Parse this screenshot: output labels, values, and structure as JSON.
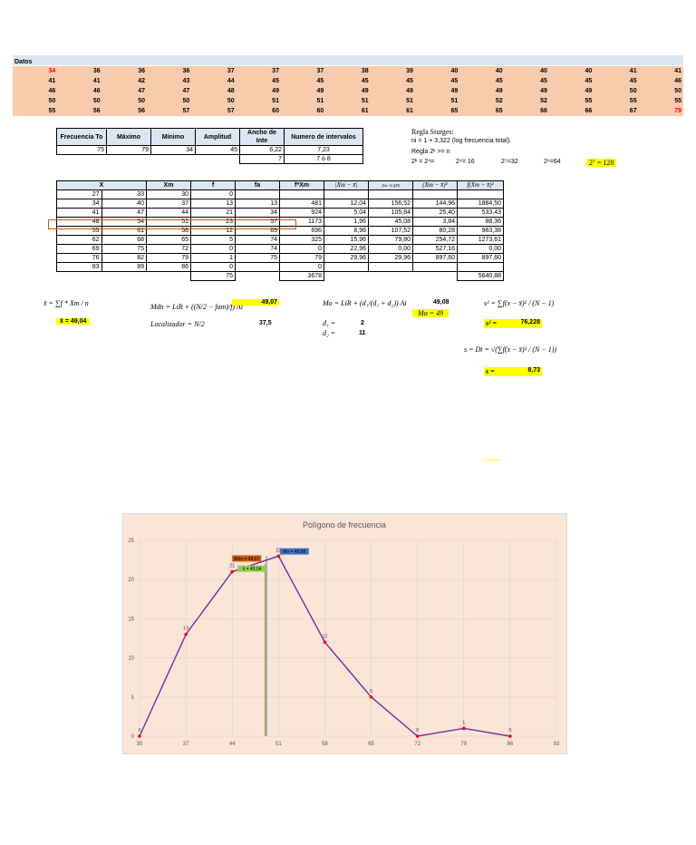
{
  "datos": {
    "label": "Datos",
    "rows": [
      [
        "34",
        "36",
        "36",
        "36",
        "37",
        "37",
        "37",
        "38",
        "39",
        "40",
        "40",
        "40",
        "40",
        "41",
        "41"
      ],
      [
        "41",
        "41",
        "42",
        "43",
        "44",
        "45",
        "45",
        "45",
        "45",
        "45",
        "45",
        "45",
        "45",
        "45",
        "46"
      ],
      [
        "46",
        "46",
        "47",
        "47",
        "48",
        "49",
        "49",
        "49",
        "49",
        "49",
        "49",
        "49",
        "49",
        "50",
        "50"
      ],
      [
        "50",
        "50",
        "50",
        "50",
        "50",
        "51",
        "51",
        "51",
        "51",
        "51",
        "52",
        "52",
        "55",
        "55",
        "55"
      ],
      [
        "55",
        "56",
        "56",
        "57",
        "57",
        "60",
        "60",
        "61",
        "61",
        "65",
        "65",
        "66",
        "66",
        "67",
        "79"
      ]
    ]
  },
  "summary": {
    "headers": [
      "Frecuencia To",
      "Máximo",
      "Mínimo",
      "Amplitud",
      "Ancho de Inte",
      "Numero de intervalos"
    ],
    "row1": [
      "75",
      "79",
      "34",
      "45",
      "6,22",
      "7,23"
    ],
    "row2_ancho": "7",
    "row2_intervals": "7 ó 8"
  },
  "sturges": {
    "title": "Regla Sturges:",
    "line1": "ni = 1 + 3,322 (log frecuencia total).",
    "line2": "Regla 2ᵏ >= n",
    "p1": "2ᵏ = 2⁴=",
    "p2": "2⁴= 16",
    "p3": "2⁵=32",
    "p4": "2⁶=64",
    "p5": "2⁷ = 128"
  },
  "freq_table": {
    "headers": [
      "X",
      "",
      "Xm",
      "f",
      "fa",
      "f*Xm",
      "|Xm − x̄|",
      "|Xm−x̄| f(M)",
      "(Xm − x̄)²",
      "f(Xm − x̄)²"
    ],
    "rows": [
      [
        "27",
        "33",
        "30",
        "0",
        "",
        "",
        "",
        "",
        "",
        ""
      ],
      [
        "34",
        "40",
        "37",
        "13",
        "13",
        "481",
        "12,04",
        "156,52",
        "144,96",
        "1884,50"
      ],
      [
        "41",
        "47",
        "44",
        "21",
        "34",
        "924",
        "5,04",
        "105,84",
        "25,40",
        "533,43"
      ],
      [
        "48",
        "54",
        "51",
        "23",
        "57",
        "1173",
        "1,96",
        "45,08",
        "3,84",
        "88,36"
      ],
      [
        "55",
        "61",
        "58",
        "12",
        "69",
        "696",
        "8,96",
        "107,52",
        "80,28",
        "963,38"
      ],
      [
        "62",
        "68",
        "65",
        "5",
        "74",
        "325",
        "15,96",
        "79,80",
        "254,72",
        "1273,61"
      ],
      [
        "69",
        "75",
        "72",
        "0",
        "74",
        "0",
        "22,96",
        "0,00",
        "527,16",
        "0,00"
      ],
      [
        "76",
        "82",
        "79",
        "1",
        "75",
        "79",
        "29,96",
        "29,96",
        "897,60",
        "897,60"
      ],
      [
        "83",
        "89",
        "86",
        "0",
        "",
        "0",
        "",
        "",
        "",
        ""
      ]
    ],
    "total_f": "75",
    "total_fxm": "3678",
    "total_sq": "5640,88"
  },
  "formulas": {
    "mean_lhs": "x̄ = ∑f * Xm / n",
    "mean_val": "x̄ = 49,04",
    "mdn": "Mdn = LiR + ((N/2 − fam)/f) Ai",
    "mdn_val": "49,07",
    "loc": "Localizador = N/2",
    "loc_val": "37,5",
    "mo": "Mo = LiR + (d₁/(d₁ + d₂)) Ai",
    "mo_val": "49,08",
    "mo_hl": "Mo = 49",
    "d1": "d₁ =",
    "d1_val": "2",
    "d2": "d₂ =",
    "d2_val": "11",
    "var": "s² = ∑f(x − x̄)² / (N − 1)",
    "var_hl_l": "s² =",
    "var_hl_v": "76,228",
    "sd": "s = Dt = √(∑f(x − x̄)² / (N − 1))",
    "sd_hl_l": "s =",
    "sd_hl_v": "8,73"
  },
  "chart_data": {
    "type": "line",
    "title": "Polígono de frecuencia",
    "x": [
      30,
      37,
      44,
      51,
      58,
      65,
      72,
      79,
      86
    ],
    "values": [
      0,
      13,
      21,
      23,
      12,
      5,
      0,
      1,
      0
    ],
    "data_labels": [
      "0",
      "13",
      "21",
      "23",
      "12",
      "5",
      "0",
      "1",
      "0"
    ],
    "xticks": [
      "30",
      "37",
      "44",
      "51",
      "58",
      "65",
      "72",
      "79",
      "86",
      "93"
    ],
    "yticks": [
      "0",
      "5",
      "10",
      "15",
      "20",
      "25"
    ],
    "xlim": [
      30,
      93
    ],
    "ylim": [
      0,
      25
    ],
    "grid": true,
    "line_color": "#7030a0",
    "marker_color": "#ff0000",
    "annotations": [
      {
        "text": "Mdn = 49,07",
        "x": 49.07,
        "color": "#c55a11"
      },
      {
        "text": "x̄ = 49,04",
        "x": 49.04,
        "color": "#92d050"
      },
      {
        "text": "Mo = 49,08",
        "x": 49.08,
        "color": "#4472c4"
      }
    ]
  }
}
